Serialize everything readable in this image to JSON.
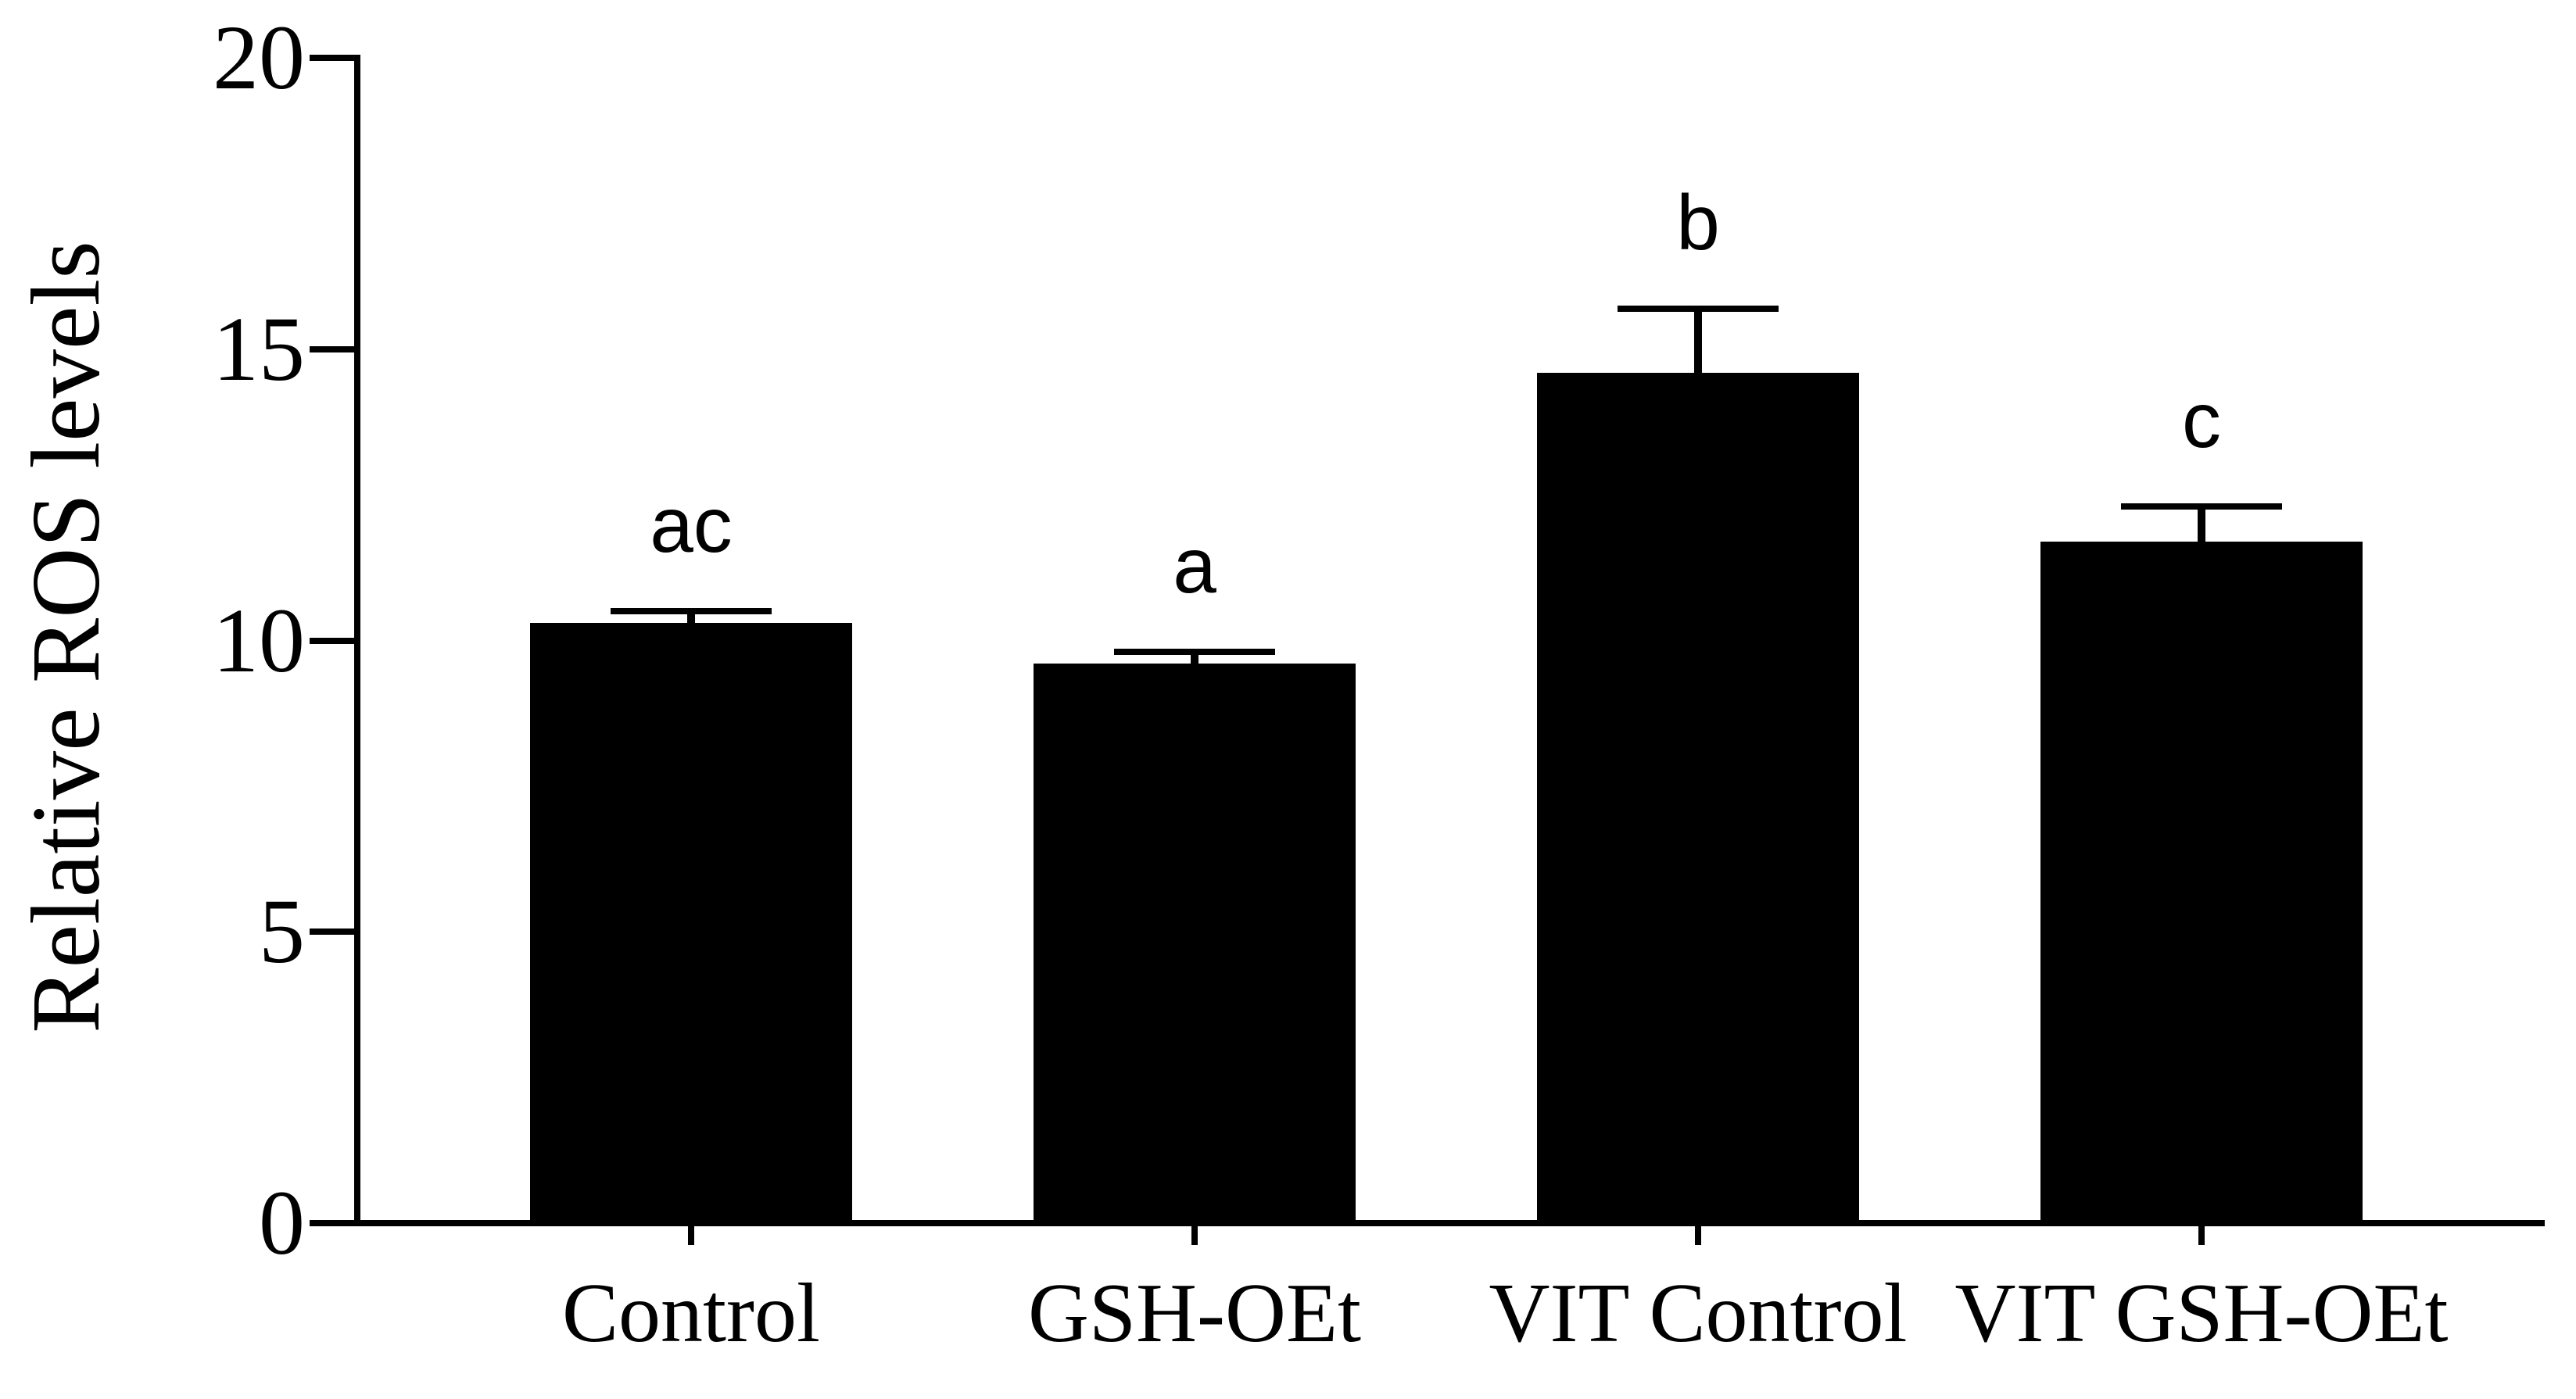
{
  "colors": {
    "ink": "#000000",
    "background": "#ffffff"
  },
  "chart_data": {
    "type": "bar",
    "title": "",
    "xlabel": "",
    "ylabel": "Relative ROS levels",
    "categories": [
      "Control",
      "GSH-OEt",
      "VIT Control",
      "VIT GSH-OEt"
    ],
    "values": [
      10.3,
      9.6,
      14.6,
      11.7
    ],
    "errors_upper": [
      0.2,
      0.2,
      1.1,
      0.6
    ],
    "significance_letters": [
      "ac",
      "a",
      "b",
      "c"
    ],
    "yticks": [
      0,
      5,
      10,
      15,
      20
    ],
    "ylim": [
      0,
      20
    ],
    "bar_color": "#000000",
    "error_bars": "upper, with caps",
    "grid": false,
    "legend": "none"
  }
}
